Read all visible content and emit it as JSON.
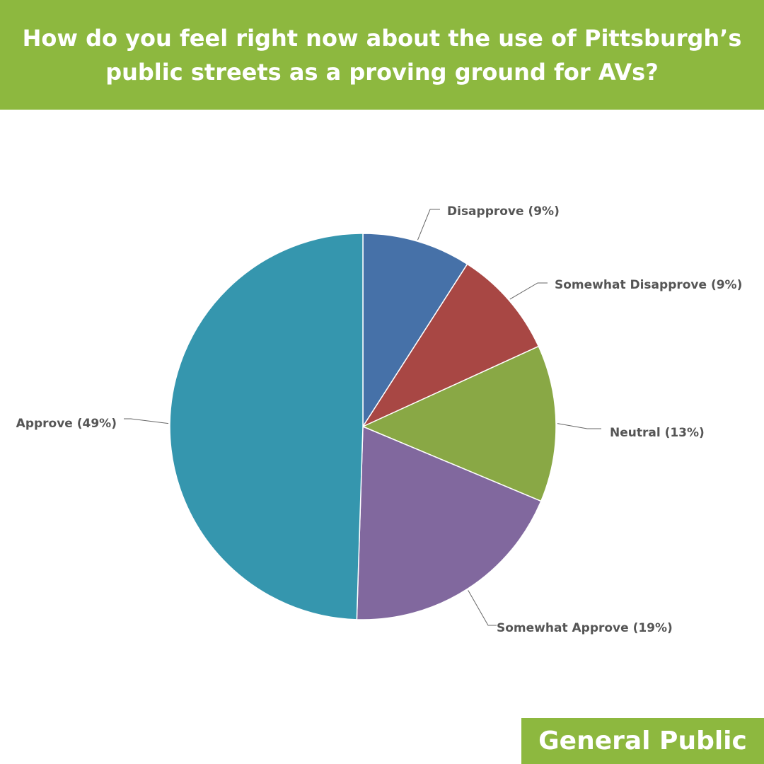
{
  "header": {
    "title_line1": "How do you feel right now about the use of Pittsburgh’s",
    "title_line2": "public streets as a proving ground for AVs?",
    "background": "#8db83f"
  },
  "footer": {
    "label": "General Public"
  },
  "chart_data": {
    "type": "pie",
    "title": "How do you feel right now about the use of Pittsburgh’s public streets as a proving ground for AVs?",
    "slices": [
      {
        "name": "Disapprove",
        "value": 9,
        "label": "Disapprove (9%)",
        "color": "#4671a8"
      },
      {
        "name": "Somewhat Disapprove",
        "value": 9,
        "label": "Somewhat Disapprove (9%)",
        "color": "#a84744"
      },
      {
        "name": "Neutral",
        "value": 13,
        "label": "Neutral (13%)",
        "color": "#89a845"
      },
      {
        "name": "Somewhat Approve",
        "value": 19,
        "label": "Somewhat Approve (19%)",
        "color": "#81689e"
      },
      {
        "name": "Approve",
        "value": 49,
        "label": "Approve (49%)",
        "color": "#3596ae"
      }
    ],
    "start_angle": "12 o'clock",
    "direction": "clockwise",
    "legend": "none",
    "data_labels": "outside with leader lines"
  }
}
